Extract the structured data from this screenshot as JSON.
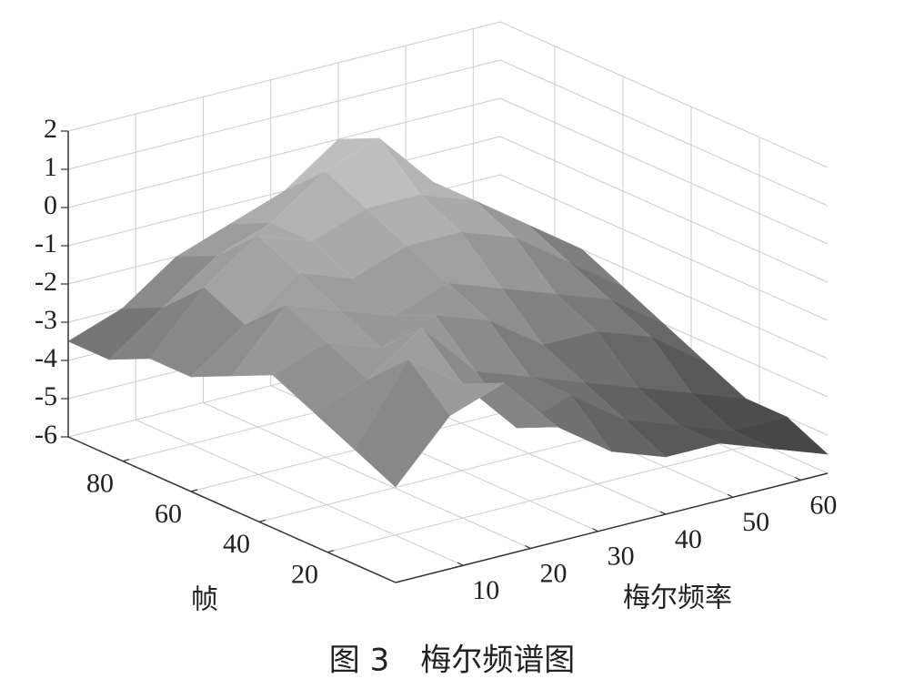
{
  "chart_data": {
    "type": "surface",
    "caption": "图 3　梅尔频谱图",
    "xlabel": "梅尔频率",
    "ylabel": "帧",
    "x": [
      0,
      8,
      16,
      24,
      32,
      40,
      48,
      56,
      64
    ],
    "y": [
      0,
      12,
      24,
      36,
      48,
      60,
      72,
      84,
      96
    ],
    "z": [
      [
        -3.5,
        -2,
        -1.5,
        -3,
        -4,
        -4.5,
        -4.5,
        -5,
        -5.5
      ],
      [
        -3,
        -1,
        -2,
        -3.5,
        -3,
        -4,
        -4.5,
        -5,
        -5
      ],
      [
        -2.5,
        -2,
        -1,
        -2.5,
        -3,
        -3.5,
        -4,
        -4.5,
        -5
      ],
      [
        -2,
        -1.5,
        -2,
        -1.5,
        -2,
        -3,
        -3,
        -3.5,
        -4.5
      ],
      [
        -2.5,
        -1,
        -1.5,
        -2,
        -1.5,
        -2,
        -2.5,
        -3,
        -4
      ],
      [
        -3,
        -2,
        -1,
        -1.5,
        -1,
        -1,
        -1.5,
        -2.5,
        -3.5
      ],
      [
        -3,
        -1.5,
        -0.5,
        -1,
        -0.5,
        -0.5,
        -1,
        -2,
        -3
      ],
      [
        -3.5,
        -2.5,
        -1.5,
        -1,
        0,
        0.5,
        -1,
        -2.5,
        -3.5
      ],
      [
        -3.5,
        -3,
        -2,
        -1.5,
        -1,
        0,
        -1.5,
        -3,
        -4
      ]
    ],
    "xlim": [
      0,
      64
    ],
    "xticks": [
      10,
      20,
      30,
      40,
      50,
      60
    ],
    "ylim": [
      0,
      96
    ],
    "yticks": [
      20,
      40,
      60,
      80
    ],
    "zlim": [
      -6,
      2
    ],
    "zticks": [
      -6,
      -5,
      -4,
      -3,
      -2,
      -1,
      0,
      1,
      2
    ],
    "grid": true
  }
}
